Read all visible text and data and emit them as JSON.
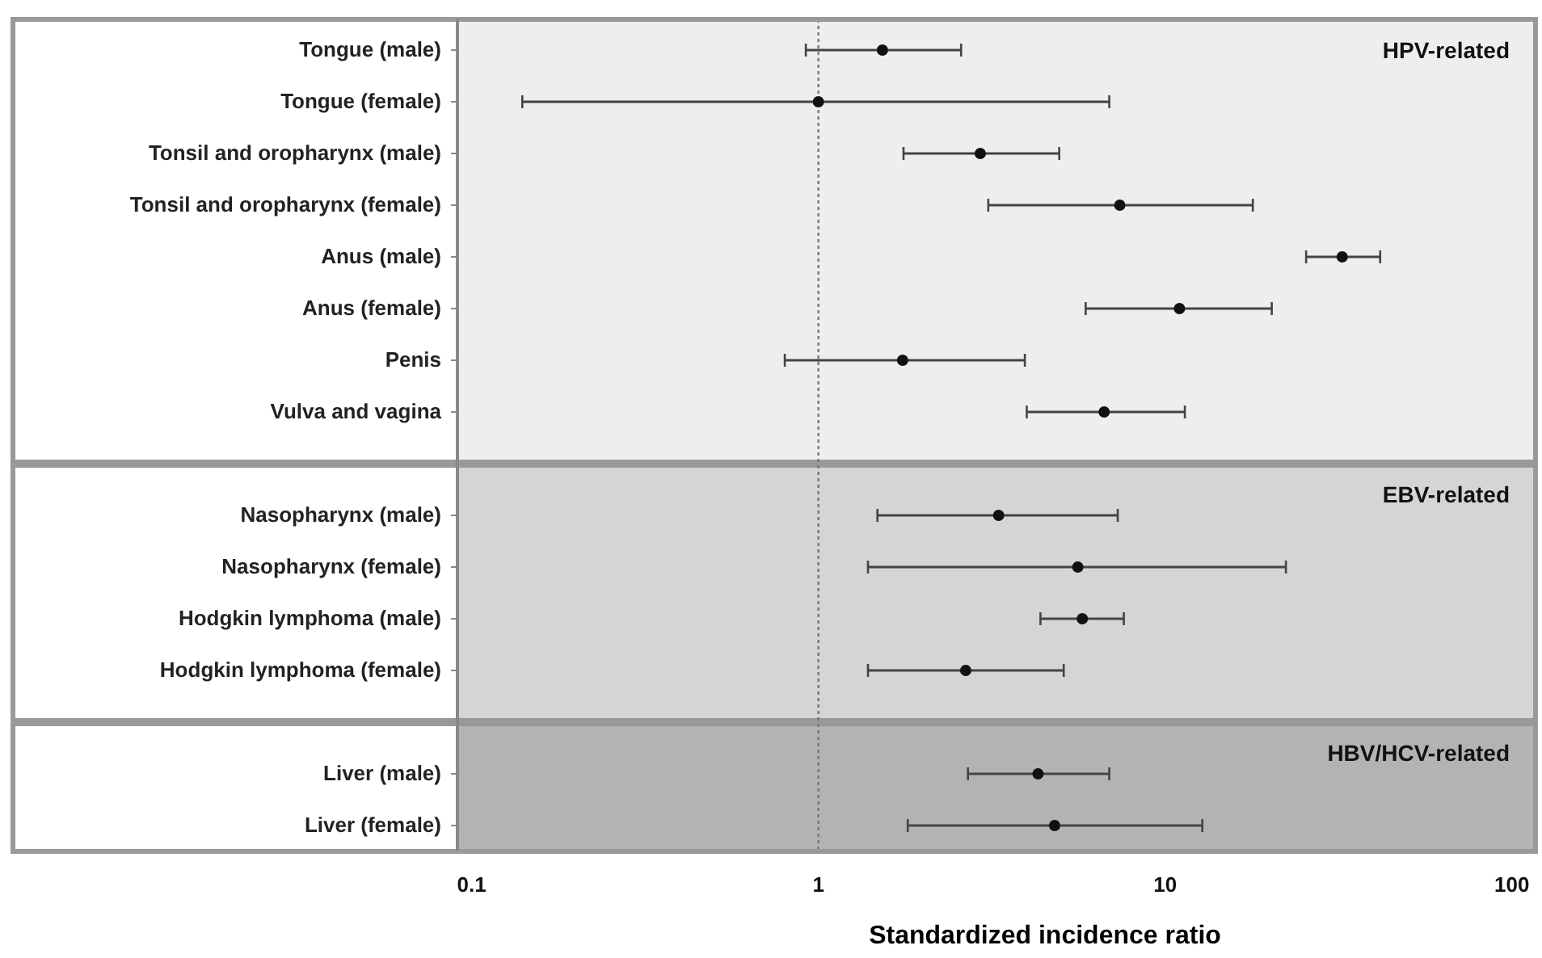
{
  "chart_data": {
    "type": "scatter",
    "orientation": "horizontal",
    "xlabel": "Standardized incidence ratio",
    "categories": [
      "Tongue (male)",
      "Tongue (female)",
      "Tonsil and oropharynx (male)",
      "Tonsil and oropharynx (female)",
      "Anus (male)",
      "Anus (female)",
      "Penis",
      "Vulva and vagina",
      null,
      "Nasopharynx (male)",
      "Nasopharynx (female)",
      "Hodgkin lymphoma (male)",
      "Hodgkin lymphoma (female)",
      null,
      "Liver (male)",
      "Liver (female)"
    ],
    "series": [
      {
        "color": "#111111",
        "values": [
          1.53,
          1.0,
          2.93,
          7.4,
          32.4,
          11.0,
          1.75,
          6.67,
          null,
          3.31,
          5.6,
          5.77,
          2.66,
          null,
          4.3,
          4.8
        ],
        "errors": [
          [
            0.92,
            2.58
          ],
          [
            0.14,
            6.9
          ],
          [
            1.76,
            4.95
          ],
          [
            3.09,
            17.9
          ],
          [
            25.5,
            41.7
          ],
          [
            5.9,
            20.3
          ],
          [
            0.8,
            3.94
          ],
          [
            3.99,
            11.4
          ],
          null,
          [
            1.48,
            7.3
          ],
          [
            1.39,
            22.3
          ],
          [
            4.37,
            7.6
          ],
          [
            1.39,
            5.1
          ],
          null,
          [
            2.7,
            6.9
          ],
          [
            1.81,
            12.8
          ]
        ]
      }
    ],
    "xlim": [
      0.091,
      117
    ],
    "xticks": [
      0.1,
      1,
      10,
      100
    ],
    "log": "x",
    "marker": "circle",
    "grid": false,
    "ref_lines": [
      {
        "axis": "x",
        "value": 1,
        "line_style": "dotted",
        "color": "#777777"
      }
    ],
    "annotations": [
      "HPV-related",
      "EBV-related",
      "HBV/HCV-related"
    ]
  }
}
